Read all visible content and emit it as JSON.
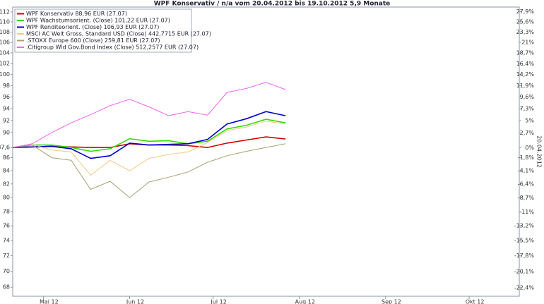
{
  "chart_data": {
    "type": "line",
    "title": "WPF Konservativ / n/a vom 20.04.2012 bis 19.10.2012 5,9 Monate",
    "y2label": "20.04.2012",
    "log_scale": true,
    "legend": "top-left",
    "x": [
      "2012-04-20",
      "2012-04-27",
      "2012-05-04",
      "2012-05-11",
      "2012-05-18",
      "2012-05-25",
      "2012-06-01",
      "2012-06-08",
      "2012-06-15",
      "2012-06-22",
      "2012-06-29",
      "2012-07-06",
      "2012-07-13",
      "2012-07-20",
      "2012-07-27"
    ],
    "xlim": [
      "2012-04-20",
      "2012-10-19"
    ],
    "xticks": [
      {
        "value": "2012-05-01",
        "label": "Mai 12"
      },
      {
        "value": "2012-06-01",
        "label": "Jun 12"
      },
      {
        "value": "2012-07-01",
        "label": "Jul 12"
      },
      {
        "value": "2012-08-01",
        "label": "Aug 12"
      },
      {
        "value": "2012-09-01",
        "label": "Sep 12"
      },
      {
        "value": "2012-10-01",
        "label": "Okt 12"
      }
    ],
    "ylim": [
      66.9,
      113
    ],
    "yticks": [
      112,
      110,
      108,
      106,
      104,
      102,
      100,
      98,
      96,
      94,
      92,
      90,
      {
        "value": 87.6,
        "label": "87,6"
      },
      86,
      84,
      82,
      80,
      78,
      76,
      74,
      72,
      70,
      68
    ],
    "y2lim": [
      -23.6,
      29.0
    ],
    "y2ticks": [
      {
        "value": 27.9,
        "label": "27,9%"
      },
      {
        "value": 25.6,
        "label": "25,6%"
      },
      {
        "value": 23.3,
        "label": "23,3%"
      },
      {
        "value": 21,
        "label": "21%"
      },
      {
        "value": 18.7,
        "label": "18,7%"
      },
      {
        "value": 16.4,
        "label": "16,4%"
      },
      {
        "value": 14.2,
        "label": "14,2%"
      },
      {
        "value": 11.9,
        "label": "11,9%"
      },
      {
        "value": 9.6,
        "label": "9,6%"
      },
      {
        "value": 7.3,
        "label": "7,3%"
      },
      {
        "value": 5,
        "label": "5%"
      },
      {
        "value": 2.7,
        "label": "2,7%"
      },
      {
        "value": 0,
        "label": "0%"
      },
      {
        "value": -1.8,
        "label": "-1,8%"
      },
      {
        "value": -4.1,
        "label": "-4,1%"
      },
      {
        "value": -6.4,
        "label": "-6,4%"
      },
      {
        "value": -8.7,
        "label": "-8,7%"
      },
      {
        "value": -11,
        "label": "-11%"
      },
      {
        "value": -13.2,
        "label": "-13,2%"
      },
      {
        "value": -15.5,
        "label": "-15,5%"
      },
      {
        "value": -17.8,
        "label": "-17,8%"
      },
      {
        "value": -20.1,
        "label": "-20,1%"
      },
      {
        "value": -22.4,
        "label": "-22,4%"
      }
    ],
    "series": [
      {
        "name": "WPF Konservativ 88,96 EUR (27.07)",
        "color": "#d00000",
        "values": [
          87.6,
          87.7,
          87.8,
          87.7,
          87.6,
          87.6,
          88.2,
          88.0,
          88.0,
          87.9,
          87.6,
          88.3,
          88.8,
          89.3,
          88.96
        ]
      },
      {
        "name": "WPF Wachstumsorient. (Close) 101,22 EUR (27.07)",
        "color": "#33dd00",
        "values": [
          87.6,
          88.0,
          88.0,
          87.6,
          87.0,
          87.4,
          89.0,
          88.6,
          88.7,
          88.2,
          88.6,
          90.6,
          91.2,
          92.2,
          91.6
        ]
      },
      {
        "name": "WPF Renditeorient. (Close) 106,93 EUR (27.07)",
        "color": "#0000cc",
        "values": [
          87.6,
          87.7,
          87.8,
          87.4,
          85.9,
          86.3,
          88.3,
          88.0,
          88.1,
          88.2,
          88.9,
          91.4,
          92.3,
          93.5,
          92.8
        ]
      },
      {
        "name": "MSCI AC Welt Gross, Standard USD (Close) 442,7715 EUR (27.07)",
        "color": "#f5c98a",
        "values": [
          87.6,
          88.1,
          87.2,
          86.9,
          83.3,
          85.6,
          84.0,
          85.9,
          86.5,
          86.9,
          88.4,
          90.3,
          90.9,
          91.9,
          91.4
        ]
      },
      {
        "name": ".STOXX Europe 600 (Close) 259,81 EUR (27.07)",
        "color": "#a8a070",
        "values": [
          87.6,
          88.0,
          86.0,
          85.6,
          81.2,
          82.4,
          80.0,
          82.3,
          83.0,
          83.8,
          85.3,
          86.3,
          87.0,
          87.6,
          88.2
        ]
      },
      {
        "name": ".Citigroup Wld Gov.Bond Index (Close) 512,2577 EUR (27.07)",
        "color": "#ee66ee",
        "values": [
          87.6,
          88.2,
          90.0,
          91.6,
          93.0,
          94.5,
          95.6,
          94.3,
          92.8,
          93.5,
          92.9,
          96.8,
          97.5,
          98.6,
          97.3
        ]
      }
    ]
  }
}
